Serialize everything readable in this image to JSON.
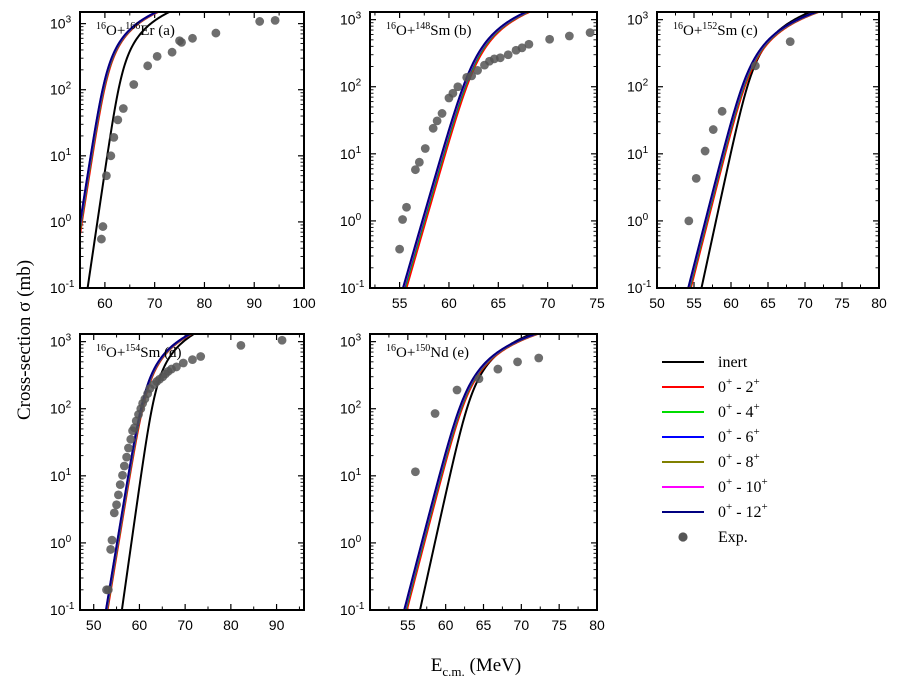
{
  "y_axis_label": "Cross-section σ (mb)",
  "x_axis_label": {
    "main": "E",
    "sub": "c.m.",
    "rest": " (MeV)"
  },
  "colors": {
    "inert": "#000000",
    "2": "#ff0000",
    "4": "#00dd00",
    "6": "#0000ff",
    "8": "#808000",
    "10": "#ff00ff",
    "12": "#000080",
    "exp": "#555555"
  },
  "legend": [
    {
      "key": "inert",
      "kind": "line",
      "text": "inert",
      "sup": "",
      "text2": "",
      "sup2": ""
    },
    {
      "key": "2",
      "kind": "line",
      "text": "0",
      "sup": "+",
      "text2": " - 2",
      "sup2": "+"
    },
    {
      "key": "4",
      "kind": "line",
      "text": "0",
      "sup": "+",
      "text2": " - 4",
      "sup2": "+"
    },
    {
      "key": "6",
      "kind": "line",
      "text": "0",
      "sup": "+",
      "text2": " - 6",
      "sup2": "+"
    },
    {
      "key": "8",
      "kind": "line",
      "text": "0",
      "sup": "+",
      "text2": " - 8",
      "sup2": "+"
    },
    {
      "key": "10",
      "kind": "line",
      "text": "0",
      "sup": "+",
      "text2": " - 10",
      "sup2": "+"
    },
    {
      "key": "12",
      "kind": "line",
      "text": "0",
      "sup": "+",
      "text2": " - 12",
      "sup2": "+"
    },
    {
      "key": "exp",
      "kind": "marker",
      "text": "Exp.",
      "sup": "",
      "text2": "",
      "sup2": ""
    }
  ],
  "chart_data": [
    {
      "id": "a",
      "type": "line",
      "label": {
        "sup1": "16",
        "t1": "O+",
        "sup2": "166",
        "t2": "Er  (a)"
      },
      "xlim": [
        55,
        100
      ],
      "xticks": [
        60,
        70,
        80,
        90,
        100
      ],
      "ylim": [
        0.1,
        1500
      ],
      "yscale": "log",
      "yticks": [
        {
          "exp": "-1",
          "value": 0.1
        },
        {
          "exp": "0",
          "value": 1
        },
        {
          "exp": "1",
          "value": 10
        },
        {
          "exp": "2",
          "value": 100
        },
        {
          "exp": "3",
          "value": 1000
        }
      ],
      "theory": {
        "inert": {
          "x50": 62.7,
          "s": 0.85,
          "a": 0.235
        },
        "coupled": {
          "x50": 59.5,
          "s": 0.9,
          "a": 0.235
        }
      },
      "exp": [
        [
          59.3,
          0.55
        ],
        [
          59.6,
          0.85
        ],
        [
          60.3,
          5
        ],
        [
          61.2,
          10
        ],
        [
          61.8,
          19
        ],
        [
          62.6,
          35
        ],
        [
          63.7,
          52
        ],
        [
          65.8,
          120
        ],
        [
          68.6,
          230
        ],
        [
          70.5,
          320
        ],
        [
          73.5,
          370
        ],
        [
          75.0,
          550
        ],
        [
          75.4,
          520
        ],
        [
          77.6,
          600
        ],
        [
          82.3,
          720
        ],
        [
          91.1,
          1080
        ],
        [
          94.2,
          1120
        ]
      ]
    },
    {
      "id": "b",
      "type": "line",
      "label": {
        "sup1": "16",
        "t1": "O+",
        "sup2": "148",
        "t2": "Sm  (b)"
      },
      "xlim": [
        52,
        75
      ],
      "xticks": [
        55,
        60,
        65,
        70,
        75
      ],
      "ylim": [
        0.1,
        1300
      ],
      "yscale": "log",
      "yticks": [
        {
          "exp": "-1",
          "value": 0.1
        },
        {
          "exp": "0",
          "value": 1
        },
        {
          "exp": "1",
          "value": 10
        },
        {
          "exp": "2",
          "value": 100
        },
        {
          "exp": "3",
          "value": 1000
        }
      ],
      "theory": {
        "inert": {
          "x50": 62.0,
          "s": 0.85,
          "a": 0.33
        },
        "coupled": {
          "x50": 61.8,
          "s": 0.85,
          "a": 0.33
        }
      },
      "exp": [
        [
          55.0,
          0.38
        ],
        [
          55.3,
          1.05
        ],
        [
          55.7,
          1.6
        ],
        [
          56.6,
          5.8
        ],
        [
          57.0,
          7.5
        ],
        [
          57.6,
          12
        ],
        [
          58.4,
          24
        ],
        [
          58.8,
          31
        ],
        [
          59.3,
          40
        ],
        [
          60.0,
          68
        ],
        [
          60.4,
          80
        ],
        [
          60.9,
          100
        ],
        [
          61.8,
          138
        ],
        [
          62.3,
          145
        ],
        [
          62.9,
          175
        ],
        [
          63.6,
          210
        ],
        [
          64.1,
          240
        ],
        [
          64.6,
          260
        ],
        [
          65.2,
          270
        ],
        [
          66.0,
          300
        ],
        [
          66.8,
          350
        ],
        [
          67.4,
          380
        ],
        [
          68.1,
          430
        ],
        [
          70.2,
          510
        ],
        [
          72.2,
          570
        ],
        [
          74.3,
          640
        ]
      ]
    },
    {
      "id": "c",
      "type": "line",
      "label": {
        "sup1": "16",
        "t1": "O+",
        "sup2": "152",
        "t2": "Sm  (c)"
      },
      "xlim": [
        50,
        80
      ],
      "xticks": [
        50,
        55,
        60,
        65,
        70,
        75,
        80
      ],
      "ylim": [
        0.1,
        1300
      ],
      "yscale": "log",
      "yticks": [
        {
          "exp": "-1",
          "value": 0.1
        },
        {
          "exp": "0",
          "value": 1
        },
        {
          "exp": "1",
          "value": 10
        },
        {
          "exp": "2",
          "value": 100
        },
        {
          "exp": "3",
          "value": 1000
        }
      ],
      "theory": {
        "inert": {
          "x50": 62.2,
          "s": 0.85,
          "a": 0.24
        },
        "coupled": {
          "x50": 61.5,
          "s": 1.0,
          "a": 0.24
        }
      },
      "exp": [
        [
          54.3,
          1.0
        ],
        [
          55.3,
          4.3
        ],
        [
          56.5,
          11
        ],
        [
          57.6,
          23
        ],
        [
          58.8,
          43
        ],
        [
          63.3,
          205
        ],
        [
          68.0,
          470
        ]
      ]
    },
    {
      "id": "d",
      "type": "line",
      "label": {
        "sup1": "16",
        "t1": "O+",
        "sup2": "154",
        "t2": "Sm (d)"
      },
      "xlim": [
        47,
        96
      ],
      "xticks": [
        50,
        60,
        70,
        80,
        90
      ],
      "ylim": [
        0.1,
        1300
      ],
      "yscale": "log",
      "yticks": [
        {
          "exp": "-1",
          "value": 0.1
        },
        {
          "exp": "0",
          "value": 1
        },
        {
          "exp": "1",
          "value": 10
        },
        {
          "exp": "2",
          "value": 100
        },
        {
          "exp": "3",
          "value": 1000
        }
      ],
      "theory": {
        "inert": {
          "x50": 62.7,
          "s": 0.9,
          "a": 0.235
        },
        "coupled": {
          "x50": 60.3,
          "s": 1.05,
          "a": 0.235
        }
      },
      "exp": [
        [
          52.8,
          0.2
        ],
        [
          53.2,
          0.2
        ],
        [
          53.7,
          0.8
        ],
        [
          54.0,
          1.1
        ],
        [
          54.5,
          2.8
        ],
        [
          55.0,
          3.7
        ],
        [
          55.4,
          5.2
        ],
        [
          55.8,
          7.4
        ],
        [
          56.3,
          10.2
        ],
        [
          56.7,
          14
        ],
        [
          57.2,
          19
        ],
        [
          57.6,
          26
        ],
        [
          58.1,
          35
        ],
        [
          58.5,
          47
        ],
        [
          58.9,
          52
        ],
        [
          59.3,
          66
        ],
        [
          59.8,
          82
        ],
        [
          60.3,
          100
        ],
        [
          60.7,
          120
        ],
        [
          61.2,
          140
        ],
        [
          61.8,
          168
        ],
        [
          62.3,
          200
        ],
        [
          63.2,
          230
        ],
        [
          63.8,
          255
        ],
        [
          64.4,
          275
        ],
        [
          65.1,
          300
        ],
        [
          65.7,
          330
        ],
        [
          66.3,
          360
        ],
        [
          67.0,
          390
        ],
        [
          68.1,
          420
        ],
        [
          69.6,
          480
        ],
        [
          71.6,
          540
        ],
        [
          73.4,
          600
        ],
        [
          82.2,
          880
        ],
        [
          91.2,
          1050
        ]
      ]
    },
    {
      "id": "e",
      "type": "line",
      "label": {
        "sup1": "16",
        "t1": "O+",
        "sup2": "150",
        "t2": "Nd  (e)"
      },
      "xlim": [
        50,
        80
      ],
      "xticks": [
        55,
        60,
        65,
        70,
        75,
        80
      ],
      "ylim": [
        0.1,
        1300
      ],
      "yscale": "log",
      "yticks": [
        {
          "exp": "-1",
          "value": 0.1
        },
        {
          "exp": "0",
          "value": 1
        },
        {
          "exp": "1",
          "value": 10
        },
        {
          "exp": "2",
          "value": 100
        },
        {
          "exp": "3",
          "value": 1000
        }
      ],
      "theory": {
        "inert": {
          "x50": 62.8,
          "s": 0.85,
          "a": 0.24
        },
        "coupled": {
          "x50": 61.8,
          "s": 1.0,
          "a": 0.24
        }
      },
      "exp": [
        [
          56.0,
          11.5
        ],
        [
          58.6,
          85
        ],
        [
          61.5,
          190
        ],
        [
          64.4,
          280
        ],
        [
          66.9,
          390
        ],
        [
          69.5,
          500
        ],
        [
          72.3,
          570
        ]
      ]
    }
  ]
}
